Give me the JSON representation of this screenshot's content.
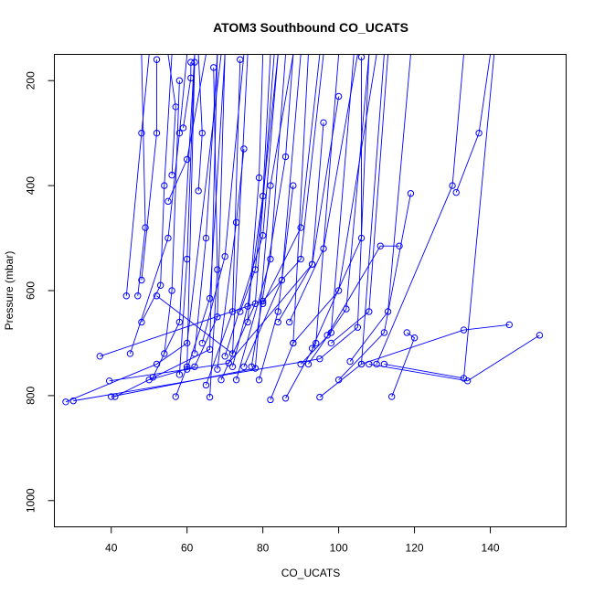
{
  "chart_data": {
    "type": "line",
    "title": "ATOM3 Southbound CO_UCATS",
    "xlabel": "CO_UCATS",
    "ylabel": "Pressure (mbar)",
    "xlim": [
      25,
      160
    ],
    "ylim": [
      1050,
      150
    ],
    "y_reversed": true,
    "xticks": [
      40,
      60,
      80,
      100,
      120,
      140
    ],
    "yticks": [
      200,
      400,
      600,
      800,
      1000
    ],
    "grid": false,
    "legend": "none",
    "colors": {
      "series": "#0000ff",
      "axis": "#000000"
    },
    "series": [
      {
        "x": [
          28,
          52,
          60,
          69
        ],
        "y": [
          812,
          740,
          700,
          150
        ]
      },
      {
        "x": [
          30,
          95,
          105,
          108
        ],
        "y": [
          810,
          730,
          670,
          150
        ]
      },
      {
        "x": [
          37,
          80,
          90,
          96
        ],
        "y": [
          725,
          620,
          540,
          150
        ]
      },
      {
        "x": [
          39.5,
          71,
          93,
          100
        ],
        "y": [
          772,
          738,
          550,
          230
        ]
      },
      {
        "x": [
          40,
          78,
          82,
          88
        ],
        "y": [
          802,
          748,
          400,
          150
        ]
      },
      {
        "x": [
          41,
          66,
          68
        ],
        "y": [
          802,
          712,
          150
        ]
      },
      {
        "x": [
          44,
          48,
          50
        ],
        "y": [
          610,
          300,
          150
        ]
      },
      {
        "x": [
          45,
          55,
          58,
          60
        ],
        "y": [
          720,
          500,
          300,
          150
        ]
      },
      {
        "x": [
          47,
          49,
          48
        ],
        "y": [
          610,
          480,
          150
        ]
      },
      {
        "x": [
          48,
          52,
          52
        ],
        "y": [
          580,
          300,
          160
        ]
      },
      {
        "x": [
          48,
          53,
          54,
          56
        ],
        "y": [
          660,
          590,
          400,
          150
        ]
      },
      {
        "x": [
          50,
          62,
          68,
          70
        ],
        "y": [
          770,
          745,
          650,
          150
        ]
      },
      {
        "x": [
          51,
          58,
          62
        ],
        "y": [
          765,
          660,
          150
        ]
      },
      {
        "x": [
          52,
          72,
          76
        ],
        "y": [
          610,
          720,
          150
        ]
      },
      {
        "x": [
          54,
          56,
          58
        ],
        "y": [
          720,
          600,
          200
        ]
      },
      {
        "x": [
          55,
          60,
          65
        ],
        "y": [
          430,
          350,
          150
        ]
      },
      {
        "x": [
          56,
          57,
          55
        ],
        "y": [
          380,
          250,
          150
        ]
      },
      {
        "x": [
          57,
          60,
          62
        ],
        "y": [
          802,
          745,
          165
        ]
      },
      {
        "x": [
          58,
          60,
          62
        ],
        "y": [
          760,
          540,
          150
        ]
      },
      {
        "x": [
          59,
          61,
          61
        ],
        "y": [
          290,
          195,
          165
        ]
      },
      {
        "x": [
          60,
          66,
          70
        ],
        "y": [
          750,
          615,
          150
        ]
      },
      {
        "x": [
          62,
          65,
          68
        ],
        "y": [
          720,
          500,
          150
        ]
      },
      {
        "x": [
          63,
          64,
          63
        ],
        "y": [
          410,
          300,
          150
        ]
      },
      {
        "x": [
          64,
          70,
          75
        ],
        "y": [
          700,
          535,
          150
        ]
      },
      {
        "x": [
          65,
          72,
          74
        ],
        "y": [
          780,
          640,
          160
        ]
      },
      {
        "x": [
          66,
          68,
          67
        ],
        "y": [
          803,
          560,
          175
        ]
      },
      {
        "x": [
          68,
          73,
          75
        ],
        "y": [
          750,
          470,
          330
        ]
      },
      {
        "x": [
          69,
          78,
          83
        ],
        "y": [
          770,
          625,
          150
        ]
      },
      {
        "x": [
          70,
          80,
          84
        ],
        "y": [
          725,
          495,
          150
        ]
      },
      {
        "x": [
          72,
          76,
          80,
          82
        ],
        "y": [
          745,
          630,
          420,
          150
        ]
      },
      {
        "x": [
          73,
          82,
          86
        ],
        "y": [
          770,
          540,
          150
        ]
      },
      {
        "x": [
          74,
          78,
          84
        ],
        "y": [
          640,
          560,
          150
        ]
      },
      {
        "x": [
          75,
          85,
          90
        ],
        "y": [
          745,
          580,
          150
        ]
      },
      {
        "x": [
          76,
          79,
          80
        ],
        "y": [
          660,
          385,
          150
        ]
      },
      {
        "x": [
          77,
          86,
          88
        ],
        "y": [
          745,
          345,
          150
        ]
      },
      {
        "x": [
          79,
          84,
          88
        ],
        "y": [
          770,
          640,
          400
        ]
      },
      {
        "x": [
          80,
          90,
          95
        ],
        "y": [
          625,
          480,
          150
        ]
      },
      {
        "x": [
          82,
          88,
          92
        ],
        "y": [
          808,
          700,
          150
        ]
      },
      {
        "x": [
          84,
          93,
          96
        ],
        "y": [
          660,
          550,
          280
        ]
      },
      {
        "x": [
          86,
          94,
          100
        ],
        "y": [
          805,
          700,
          150
        ]
      },
      {
        "x": [
          87,
          96,
          105
        ],
        "y": [
          660,
          520,
          150
        ]
      },
      {
        "x": [
          88,
          100,
          110
        ],
        "y": [
          700,
          600,
          150
        ]
      },
      {
        "x": [
          90,
          98,
          104
        ],
        "y": [
          740,
          680,
          150
        ]
      },
      {
        "x": [
          92,
          102,
          108
        ],
        "y": [
          740,
          635,
          150
        ]
      },
      {
        "x": [
          93,
          106,
          106
        ],
        "y": [
          710,
          500,
          155
        ]
      },
      {
        "x": [
          95,
          106,
          112
        ],
        "y": [
          803,
          740,
          150
        ]
      },
      {
        "x": [
          97,
          111,
          116
        ],
        "y": [
          685,
          515,
          515
        ]
      },
      {
        "x": [
          98,
          108,
          113
        ],
        "y": [
          700,
          640,
          150
        ]
      },
      {
        "x": [
          100,
          112,
          119
        ],
        "y": [
          770,
          680,
          415
        ]
      },
      {
        "x": [
          103,
          113,
          119
        ],
        "y": [
          735,
          640,
          150
        ]
      },
      {
        "x": [
          106,
          133,
          145
        ],
        "y": [
          740,
          675,
          665
        ]
      },
      {
        "x": [
          108,
          134,
          153
        ],
        "y": [
          740,
          772,
          685
        ]
      },
      {
        "x": [
          110,
          130,
          133
        ],
        "y": [
          740,
          400,
          150
        ]
      },
      {
        "x": [
          112,
          133,
          141
        ],
        "y": [
          740,
          767,
          150
        ]
      },
      {
        "x": [
          114,
          120,
          118
        ],
        "y": [
          802,
          690,
          680
        ]
      },
      {
        "x": [
          131,
          137,
          140
        ],
        "y": [
          413,
          300,
          150
        ]
      }
    ]
  }
}
